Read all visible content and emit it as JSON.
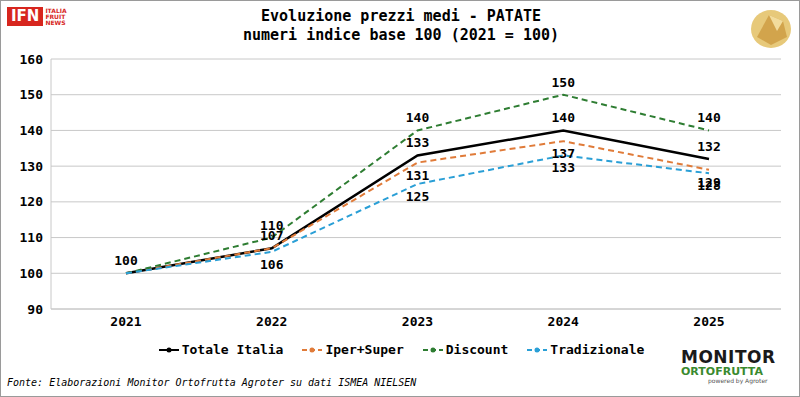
{
  "chart_data": {
    "type": "line",
    "title": "Evoluzione prezzi medi - PATATE",
    "subtitle": "numeri indice base 100 (2021 = 100)",
    "categories": [
      "2021",
      "2022",
      "2023",
      "2024",
      "2025"
    ],
    "series": [
      {
        "name": "Totale Italia",
        "color": "#000000",
        "line_style": "solid",
        "marker": "none",
        "values": [
          100,
          107,
          133,
          140,
          132
        ],
        "value_labels": [
          "100",
          "107",
          "133",
          "140",
          "132"
        ]
      },
      {
        "name": "Iper+Super",
        "color": "#E07B39",
        "line_style": "dashed",
        "marker": "none",
        "values": [
          100,
          107,
          131,
          137,
          129
        ],
        "value_labels": [
          null,
          null,
          "131",
          "137",
          "129"
        ]
      },
      {
        "name": "Discount",
        "color": "#2E7D32",
        "line_style": "dashed",
        "marker": "none",
        "values": [
          100,
          110,
          140,
          150,
          140
        ],
        "value_labels": [
          null,
          "110",
          "140",
          "150",
          "140"
        ]
      },
      {
        "name": "Tradizionale",
        "color": "#2A9FD6",
        "line_style": "dashed",
        "marker": "none",
        "values": [
          100,
          106,
          125,
          133,
          128
        ],
        "value_labels": [
          null,
          "106",
          "125",
          "133",
          "128"
        ]
      }
    ],
    "ylim": [
      90,
      160
    ],
    "yticks": [
      90,
      100,
      110,
      120,
      130,
      140,
      150,
      160
    ],
    "grid": true,
    "legend": "bottom",
    "data_labels": true,
    "annotations": [
      "Fonte: Elaborazioni Monitor Ortofrutta Agroter su dati ISMEA NIELSEN",
      "IFN",
      "ITALIA",
      "FRUIT",
      "NEWS",
      "MONITOR",
      "ORTOFRUTTA",
      "powered by Agroter"
    ]
  }
}
